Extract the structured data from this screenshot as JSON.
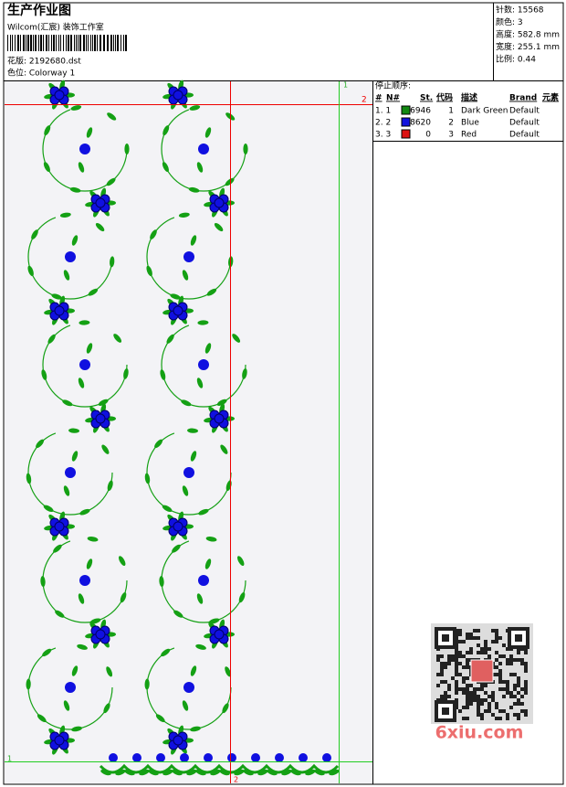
{
  "header": {
    "title": "生产作业图",
    "studio": "Wilcom(汇宸) 装饰工作室",
    "design": "花版: 2192680.dst",
    "colorway": "色位: Colorway 1"
  },
  "stats": [
    "针数: 15568",
    "颜色: 3",
    "高度: 582.8 mm",
    "宽度: 255.1 mm",
    "比例: 0.44"
  ],
  "table": {
    "caption": "停止顺序:",
    "columns": [
      "#",
      "N#",
      "St.",
      "代码",
      "描述",
      "Brand",
      "元素"
    ],
    "rows": [
      {
        "index": "1. 1",
        "color": "#118811",
        "stitches": 6946,
        "code": 1,
        "description": "Dark Green",
        "brand": "Default"
      },
      {
        "index": "2. 2",
        "color": "#1111dd",
        "stitches": 8620,
        "code": 2,
        "description": "Blue",
        "brand": "Default"
      },
      {
        "index": "3. 3",
        "color": "#dd1111",
        "stitches": 0,
        "code": 3,
        "description": "Red",
        "brand": "Default"
      }
    ]
  },
  "guides": {
    "green_top": "1",
    "red_right": "2",
    "green_left": "1",
    "red_bottom": "2"
  },
  "watermark": "6xiu.com"
}
